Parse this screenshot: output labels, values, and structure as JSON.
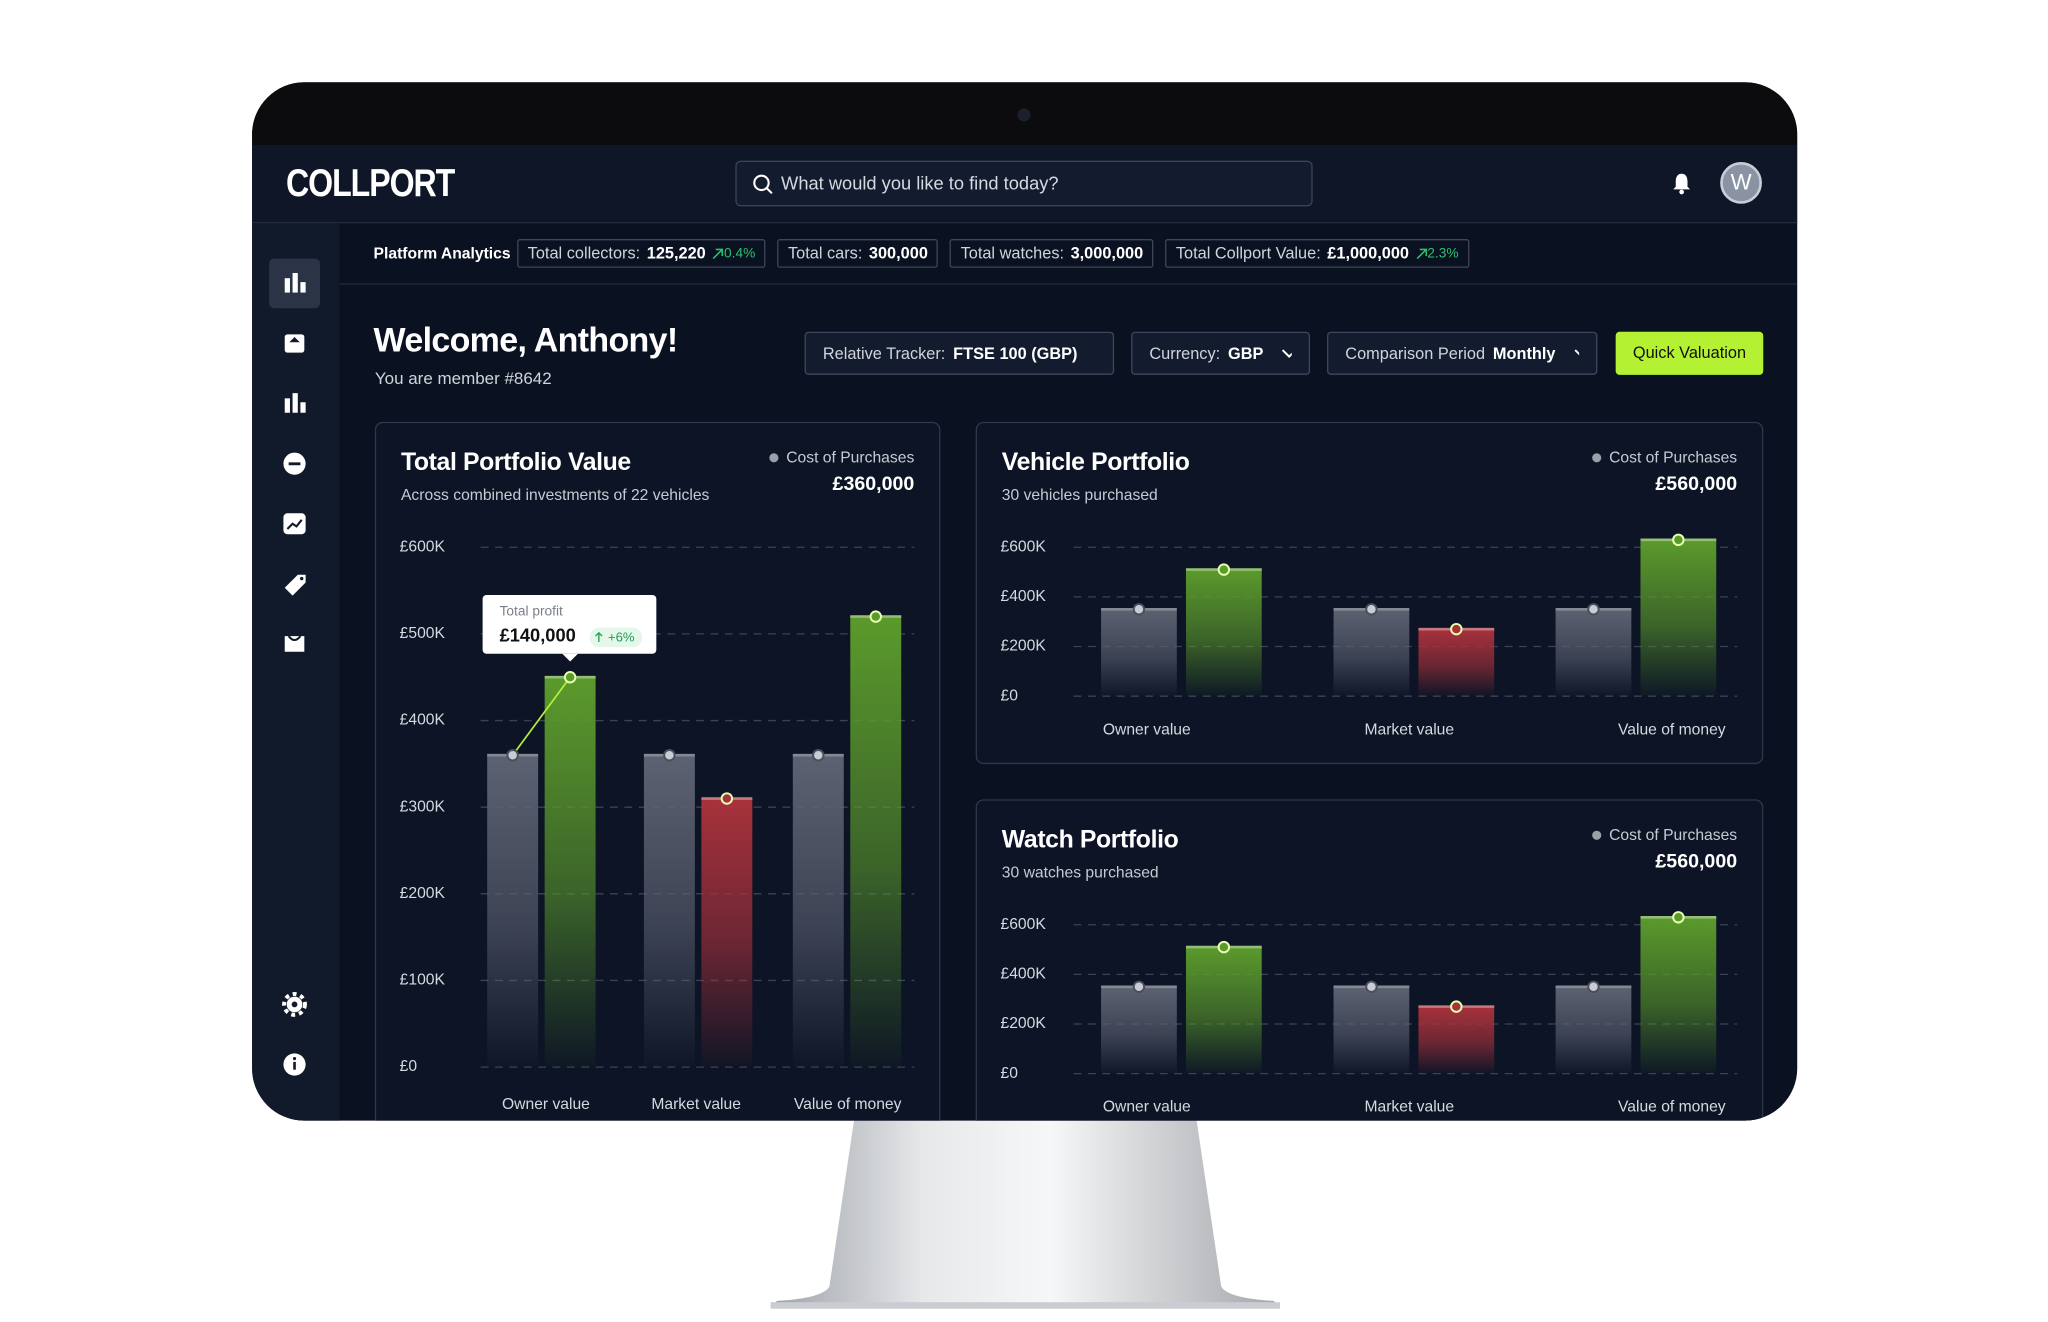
{
  "header": {
    "logo": "COLLPORT",
    "search_placeholder": "What would you like to find today?",
    "avatar": "W"
  },
  "platform_analytics": {
    "title": "Platform Analytics",
    "stats": [
      {
        "label": "Total collectors:",
        "value": "125,220",
        "change": "0.4%"
      },
      {
        "label": "Total cars:",
        "value": "300,000"
      },
      {
        "label": "Total watches:",
        "value": "3,000,000"
      },
      {
        "label": "Total Collport Value:",
        "value": "£1,000,000",
        "change": "2.3%"
      }
    ]
  },
  "welcome": {
    "title": "Welcome, Anthony!",
    "subtitle": "You are member #8642"
  },
  "filters": [
    {
      "label": "Relative Tracker:",
      "value": "FTSE 100 (GBP)"
    },
    {
      "label": "Currency:",
      "value": "GBP"
    },
    {
      "label": "Comparison Period",
      "value": "Monthly"
    }
  ],
  "quick_valuation": "Quick Valuation",
  "panels": [
    {
      "title": "Total Portfolio Value",
      "subtitle": "Across combined investments of 22 vehicles",
      "total": "£360,000",
      "chart_data": {
        "type": "bar",
        "categories": [
          "Owner value",
          "Market value",
          "Value of money"
        ],
        "series": [
          {
            "name": "Cost of Purchases",
            "color": "#5d6272",
            "values": [
              360000,
              360000,
              360000
            ]
          },
          {
            "colors": [
              "#5b9a2c",
              "#a8323c",
              "#5b9a2c"
            ],
            "values": [
              450000,
              310000,
              520000
            ]
          }
        ],
        "ylim": [
          0,
          600000
        ],
        "yticks": [
          {
            "value": 0,
            "label": "£0"
          },
          {
            "value": 100000,
            "label": "£100K"
          },
          {
            "value": 200000,
            "label": "£200K"
          },
          {
            "value": 300000,
            "label": "£300K"
          },
          {
            "value": 400000,
            "label": "£400K"
          },
          {
            "value": 500000,
            "label": "£500K"
          },
          {
            "value": 600000,
            "label": "£600K"
          }
        ],
        "grid": true,
        "tooltip": {
          "title": "Total profit",
          "value": "£140,000",
          "change": "+6%"
        }
      }
    },
    {
      "title": "Vehicle Portfolio",
      "subtitle": "30 vehicles purchased",
      "total": "£560,000",
      "chart_data": {
        "type": "bar",
        "categories": [
          "Owner value",
          "Market value",
          "Value of money"
        ],
        "series": [
          {
            "name": "Cost of Purchases",
            "color": "#5d6272",
            "values": [
              350000,
              350000,
              350000
            ]
          },
          {
            "colors": [
              "#5b9a2c",
              "#a8323c",
              "#5b9a2c"
            ],
            "values": [
              510000,
              270000,
              630000
            ]
          }
        ],
        "ylim": [
          0,
          650000
        ],
        "yticks": [
          {
            "value": 0,
            "label": "£0"
          },
          {
            "value": 200000,
            "label": "£200K"
          },
          {
            "value": 400000,
            "label": "£400K"
          },
          {
            "value": 600000,
            "label": "£600K"
          }
        ],
        "grid": true
      }
    },
    {
      "title": "Watch Portfolio",
      "subtitle": "30 watches purchased",
      "total": "£560,000",
      "chart_data": {
        "type": "bar",
        "categories": [
          "Owner value",
          "Market value",
          "Value of money"
        ],
        "series": [
          {
            "name": "Cost of Purchases",
            "color": "#5d6272",
            "values": [
              350000,
              350000,
              350000
            ]
          },
          {
            "colors": [
              "#5b9a2c",
              "#a8323c",
              "#5b9a2c"
            ],
            "values": [
              510000,
              270000,
              630000
            ]
          }
        ],
        "ylim": [
          0,
          650000
        ],
        "yticks": [
          {
            "value": 0,
            "label": "£0"
          },
          {
            "value": 200000,
            "label": "£200K"
          },
          {
            "value": 400000,
            "label": "£400K"
          },
          {
            "value": 600000,
            "label": "£600K"
          }
        ],
        "grid": true
      }
    }
  ]
}
